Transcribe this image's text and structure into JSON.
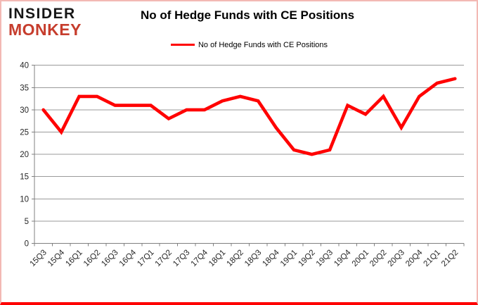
{
  "header": {
    "logo_line1": "INSIDER",
    "logo_line2": "MONKEY",
    "title": "No of Hedge Funds with CE Positions"
  },
  "legend": {
    "label": "No of Hedge Funds with CE Positions"
  },
  "colors": {
    "series_line": "#ff0000",
    "logo_black": "#161616",
    "logo_red": "#c63d2d",
    "gridline": "#9a9a9a",
    "axis_line": "#808080",
    "axis_text": "#262626",
    "frame_border": "#f3b9b4",
    "frame_border_bottom": "#fe0000"
  },
  "chart_data": {
    "type": "line",
    "title": "No of Hedge Funds with CE Positions",
    "categories": [
      "15Q3",
      "15Q4",
      "16Q1",
      "16Q2",
      "16Q3",
      "16Q4",
      "17Q1",
      "17Q2",
      "17Q3",
      "17Q4",
      "18Q1",
      "18Q2",
      "18Q3",
      "18Q4",
      "19Q1",
      "19Q2",
      "19Q3",
      "19Q4",
      "20Q1",
      "20Q2",
      "20Q3",
      "20Q4",
      "21Q1",
      "21Q2"
    ],
    "series": [
      {
        "name": "No of Hedge Funds with CE Positions",
        "color": "#ff0000",
        "values": [
          30,
          25,
          33,
          33,
          31,
          31,
          31,
          28,
          30,
          30,
          32,
          33,
          32,
          26,
          21,
          20,
          21,
          31,
          29,
          33,
          26,
          33,
          36,
          37
        ]
      }
    ],
    "ylim": [
      0,
      40
    ],
    "ytick_step": 5,
    "grid": true,
    "legend_position": "top",
    "xlabel": "",
    "ylabel": ""
  }
}
